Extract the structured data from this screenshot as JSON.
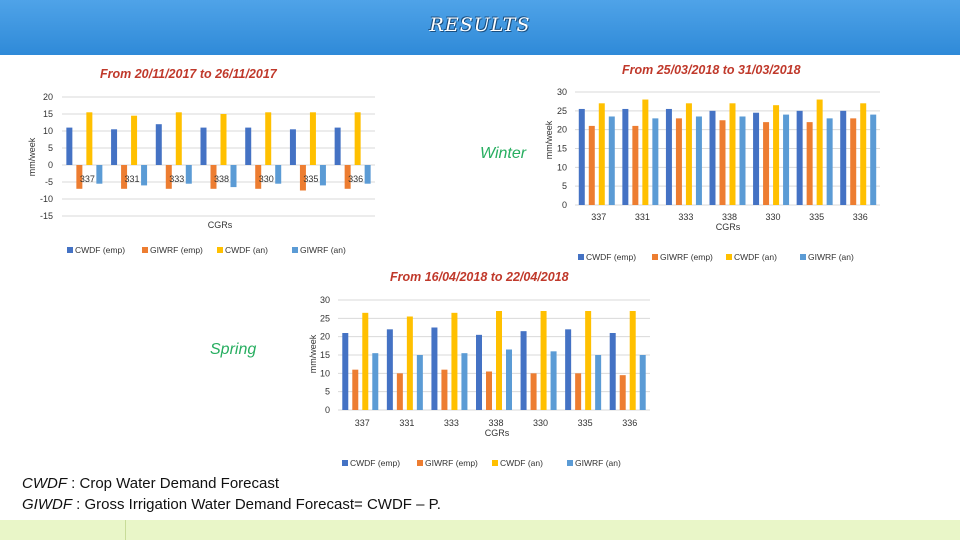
{
  "page_title": "RESULTS",
  "season_labels": {
    "winter": "Winter",
    "spring": "Spring"
  },
  "definitions": {
    "cwdf_abbr": "CWDF",
    "cwdf_text": " : Crop Water Demand Forecast",
    "giwdf_abbr": "GIWDF",
    "giwdf_text": " : Gross Irrigation Water Demand Forecast= CWDF – P."
  },
  "colors": {
    "cwdf_emp": "#4472c4",
    "giwrf_emp": "#ed7d31",
    "cwdf_an": "#ffc000",
    "giwrf_an": "#5b9bd5"
  },
  "chart_data": [
    {
      "type": "bar",
      "title": "From 20/11/2017 to 26/11/2017",
      "categories": [
        "337",
        "331",
        "333",
        "338",
        "330",
        "335",
        "336"
      ],
      "xlabel": "CGRs",
      "ylabel": "mm/week",
      "ylim": [
        -15,
        20
      ],
      "yticks": [
        -15,
        -10,
        -5,
        0,
        5,
        10,
        15,
        20
      ],
      "legend_position": "bottom",
      "series": [
        {
          "name": "CWDF (emp)",
          "values": [
            11,
            10.5,
            12,
            11,
            11,
            10.5,
            11
          ]
        },
        {
          "name": "GIWRF (emp)",
          "values": [
            -7,
            -7,
            -7,
            -7,
            -7,
            -7.5,
            -7
          ]
        },
        {
          "name": "CWDF (an)",
          "values": [
            15.5,
            14.5,
            15.5,
            15,
            15.5,
            15.5,
            15.5
          ]
        },
        {
          "name": "GIWRF (an)",
          "values": [
            -5.5,
            -6,
            -5.5,
            -6.5,
            -5.5,
            -6,
            -5.5
          ]
        }
      ]
    },
    {
      "type": "bar",
      "title": "From 25/03/2018 to 31/03/2018",
      "categories": [
        "337",
        "331",
        "333",
        "338",
        "330",
        "335",
        "336"
      ],
      "xlabel": "CGRs",
      "ylabel": "mm/week",
      "ylim": [
        0,
        30
      ],
      "yticks": [
        0,
        5,
        10,
        15,
        20,
        25,
        30
      ],
      "legend_position": "bottom",
      "series": [
        {
          "name": "CWDF (emp)",
          "values": [
            25.5,
            25.5,
            25.5,
            25,
            24.5,
            25,
            25
          ]
        },
        {
          "name": "GIWRF (emp)",
          "values": [
            21,
            21,
            23,
            22.5,
            22,
            22,
            23
          ]
        },
        {
          "name": "CWDF (an)",
          "values": [
            27,
            28,
            27,
            27,
            26.5,
            28,
            27
          ]
        },
        {
          "name": "GIWRF (an)",
          "values": [
            23.5,
            23,
            23.5,
            23.5,
            24,
            23,
            24
          ]
        }
      ]
    },
    {
      "type": "bar",
      "title": "From 16/04/2018 to 22/04/2018",
      "categories": [
        "337",
        "331",
        "333",
        "338",
        "330",
        "335",
        "336"
      ],
      "xlabel": "CGRs",
      "ylabel": "mm/week",
      "ylim": [
        0,
        30
      ],
      "yticks": [
        0,
        5,
        10,
        15,
        20,
        25,
        30
      ],
      "legend_position": "bottom",
      "series": [
        {
          "name": "CWDF (emp)",
          "values": [
            21,
            22,
            22.5,
            20.5,
            21.5,
            22,
            21
          ]
        },
        {
          "name": "GIWRF (emp)",
          "values": [
            11,
            10,
            11,
            10.5,
            10,
            10,
            9.5
          ]
        },
        {
          "name": "CWDF (an)",
          "values": [
            26.5,
            25.5,
            26.5,
            27,
            27,
            27,
            27
          ]
        },
        {
          "name": "GIWRF (an)",
          "values": [
            15.5,
            15,
            15.5,
            16.5,
            16,
            15,
            15
          ]
        }
      ]
    }
  ]
}
